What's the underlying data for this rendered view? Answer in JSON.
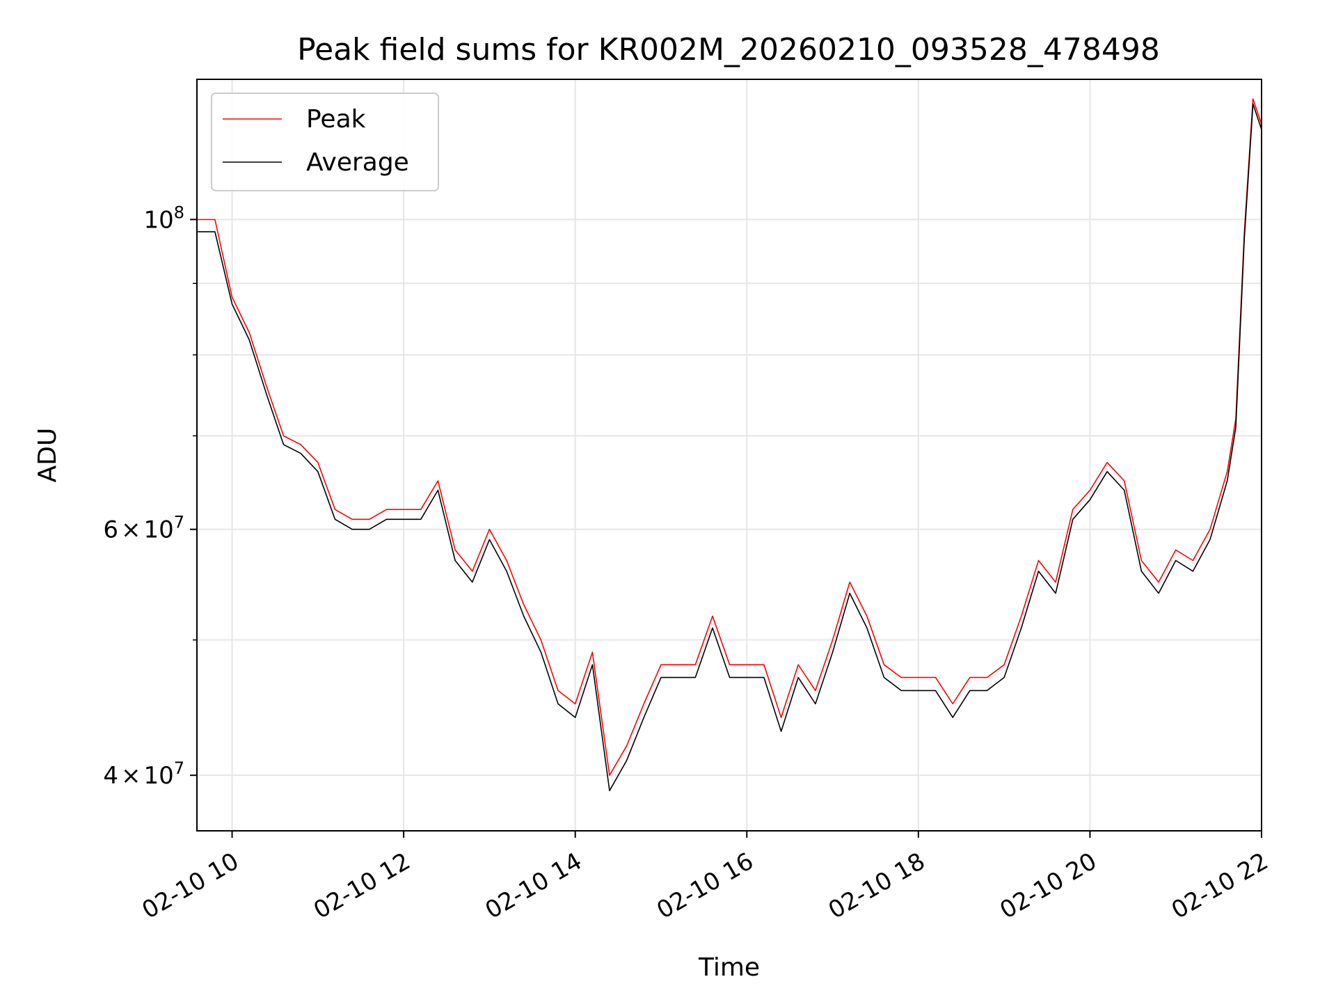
{
  "chart_data": {
    "type": "line",
    "title": "Peak field sums for KR002M_20260210_093528_478498",
    "xlabel": "Time",
    "ylabel": "ADU",
    "yscale": "log",
    "xlim": [
      9.59,
      22.0
    ],
    "ylim": [
      36500000,
      126000000
    ],
    "grid": true,
    "legend_position": "top-left",
    "x_ticks": [
      {
        "value": 10,
        "label": "02-10 10"
      },
      {
        "value": 12,
        "label": "02-10 12"
      },
      {
        "value": 14,
        "label": "02-10 14"
      },
      {
        "value": 16,
        "label": "02-10 16"
      },
      {
        "value": 18,
        "label": "02-10 18"
      },
      {
        "value": 20,
        "label": "02-10 20"
      },
      {
        "value": 22,
        "label": "02-10 22"
      }
    ],
    "y_ticks": [
      {
        "value": 40000000,
        "mantissa": "4",
        "exponent": "7"
      },
      {
        "value": 60000000,
        "mantissa": "6",
        "exponent": "7"
      },
      {
        "value": 100000000,
        "base": "10",
        "exponent": "8"
      }
    ],
    "y_minor_ticks": [
      50000000,
      70000000,
      80000000,
      90000000
    ],
    "series": [
      {
        "name": "Peak",
        "color": "#ff0000",
        "x": [
          9.6,
          9.8,
          10.0,
          10.2,
          10.4,
          10.6,
          10.8,
          11.0,
          11.2,
          11.4,
          11.6,
          11.8,
          12.0,
          12.2,
          12.4,
          12.6,
          12.8,
          13.0,
          13.2,
          13.4,
          13.6,
          13.8,
          14.0,
          14.2,
          14.4,
          14.6,
          14.8,
          15.0,
          15.2,
          15.4,
          15.6,
          15.8,
          16.0,
          16.2,
          16.4,
          16.6,
          16.8,
          17.0,
          17.2,
          17.4,
          17.6,
          17.8,
          18.0,
          18.2,
          18.4,
          18.6,
          18.8,
          19.0,
          19.2,
          19.4,
          19.6,
          19.8,
          20.0,
          20.2,
          20.4,
          20.6,
          20.8,
          21.0,
          21.2,
          21.4,
          21.6,
          21.7,
          21.8,
          21.9,
          22.0
        ],
        "values": [
          100000000,
          100000000,
          88000000,
          83000000,
          76000000,
          70000000,
          69000000,
          67000000,
          62000000,
          61000000,
          61000000,
          62000000,
          62000000,
          62000000,
          65000000,
          58000000,
          56000000,
          60000000,
          57000000,
          53000000,
          50000000,
          46000000,
          45000000,
          49000000,
          40000000,
          42000000,
          45000000,
          48000000,
          48000000,
          48000000,
          52000000,
          48000000,
          48000000,
          48000000,
          44000000,
          48000000,
          46000000,
          50000000,
          55000000,
          52000000,
          48000000,
          47000000,
          47000000,
          47000000,
          45000000,
          47000000,
          47000000,
          48000000,
          52000000,
          57000000,
          55000000,
          62000000,
          64000000,
          67000000,
          65000000,
          57000000,
          55000000,
          58000000,
          57000000,
          60000000,
          66000000,
          72000000,
          98000000,
          122000000,
          117000000
        ]
      },
      {
        "name": "Average",
        "color": "#000000",
        "x": [
          9.6,
          9.8,
          10.0,
          10.2,
          10.4,
          10.6,
          10.8,
          11.0,
          11.2,
          11.4,
          11.6,
          11.8,
          12.0,
          12.2,
          12.4,
          12.6,
          12.8,
          13.0,
          13.2,
          13.4,
          13.6,
          13.8,
          14.0,
          14.2,
          14.4,
          14.6,
          14.8,
          15.0,
          15.2,
          15.4,
          15.6,
          15.8,
          16.0,
          16.2,
          16.4,
          16.6,
          16.8,
          17.0,
          17.2,
          17.4,
          17.6,
          17.8,
          18.0,
          18.2,
          18.4,
          18.6,
          18.8,
          19.0,
          19.2,
          19.4,
          19.6,
          19.8,
          20.0,
          20.2,
          20.4,
          20.6,
          20.8,
          21.0,
          21.2,
          21.4,
          21.6,
          21.7,
          21.8,
          21.9,
          22.0
        ],
        "values": [
          98000000,
          98000000,
          87000000,
          82000000,
          75000000,
          69000000,
          68000000,
          66000000,
          61000000,
          60000000,
          60000000,
          61000000,
          61000000,
          61000000,
          64000000,
          57000000,
          55000000,
          59000000,
          56000000,
          52000000,
          49000000,
          45000000,
          44000000,
          48000000,
          39000000,
          41000000,
          44000000,
          47000000,
          47000000,
          47000000,
          51000000,
          47000000,
          47000000,
          47000000,
          43000000,
          47000000,
          45000000,
          49000000,
          54000000,
          51000000,
          47000000,
          46000000,
          46000000,
          46000000,
          44000000,
          46000000,
          46000000,
          47000000,
          51000000,
          56000000,
          54000000,
          61000000,
          63000000,
          66000000,
          64000000,
          56000000,
          54000000,
          57000000,
          56000000,
          59000000,
          65000000,
          71000000,
          97000000,
          121000000,
          116000000
        ]
      }
    ]
  }
}
